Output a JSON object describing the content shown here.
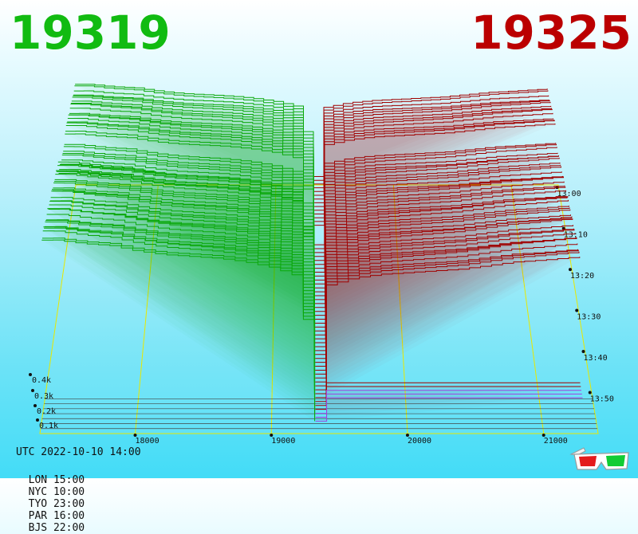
{
  "header": {
    "bid_price": "19319",
    "ask_price": "19325",
    "bid_color": "#11bb11",
    "ask_color": "#bb0000"
  },
  "footer": {
    "utc": "UTC 2022-10-10 14:00",
    "zones": [
      "LON 15:00",
      "NYC 10:00",
      "TYO 23:00",
      "PAR 16:00",
      "BJS 22:00"
    ]
  },
  "icons": {
    "anaglyph": "3d-glasses-icon"
  },
  "chart_data": {
    "type": "area",
    "title": "",
    "price_ticks": [
      "18000",
      "19000",
      "20000",
      "21000"
    ],
    "price_tick_values": [
      18000,
      19000,
      20000,
      21000
    ],
    "time_ticks": [
      "13:00",
      "13:10",
      "13:20",
      "13:30",
      "13:40",
      "13:50"
    ],
    "volume_ticks": [
      "0.4k",
      "0.3k",
      "0.2k",
      "0.1k"
    ],
    "volume_tick_values": [
      400,
      300,
      200,
      100
    ],
    "bid_color": "#0aa80a",
    "ask_color": "#a00000",
    "snapshot_count": 60,
    "bid_depth_profile": {
      "price": [
        17400,
        17600,
        17800,
        18000,
        18200,
        18400,
        18600,
        18800,
        19000,
        19200,
        19319
      ],
      "cumulative_volume": [
        470,
        460,
        455,
        440,
        430,
        425,
        420,
        410,
        395,
        370,
        0
      ]
    },
    "ask_depth_profile": {
      "price": [
        19325,
        19400,
        19600,
        19800,
        20000,
        20200,
        20400,
        20600,
        20800,
        21000,
        21300
      ],
      "cumulative_volume": [
        0,
        310,
        330,
        340,
        345,
        350,
        355,
        365,
        375,
        380,
        390
      ]
    }
  }
}
